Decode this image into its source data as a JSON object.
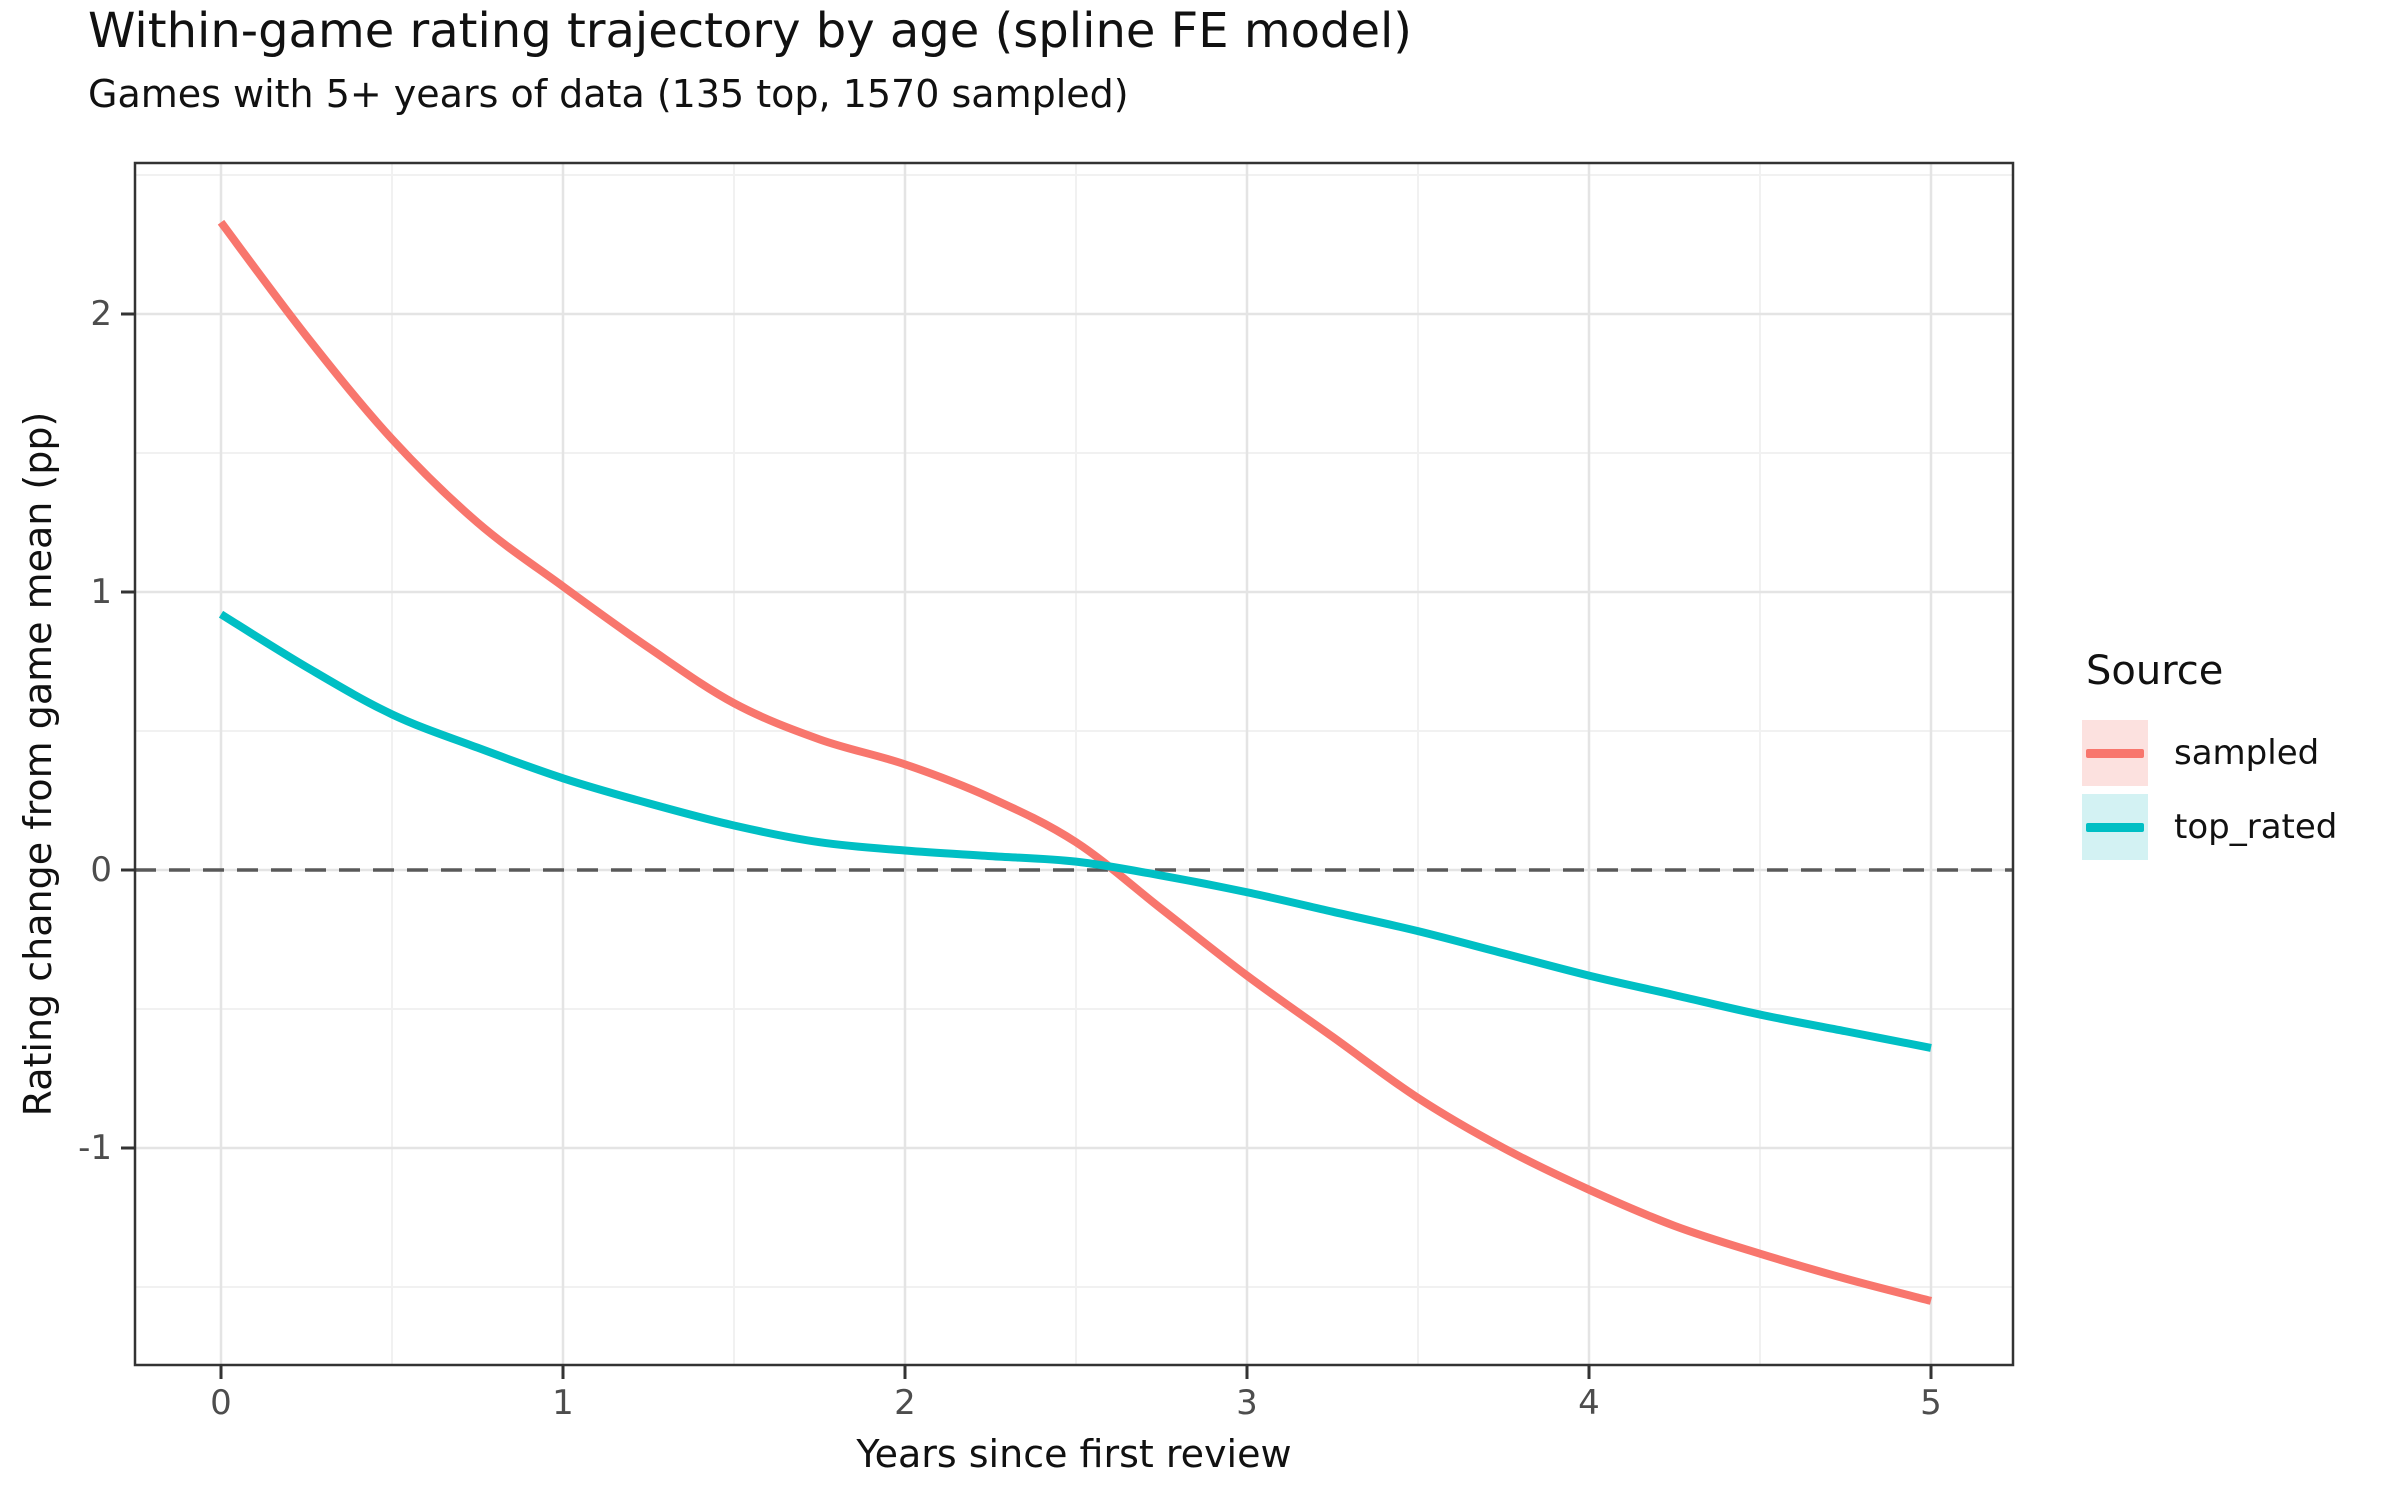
{
  "header": {
    "title": "Within-game rating trajectory by age (spline FE model)",
    "subtitle": "Games with 5+ years of data (135 top, 1570 sampled)"
  },
  "chart_data": {
    "type": "line",
    "title": "Within-game rating trajectory by age (spline FE model)",
    "subtitle": "Games with 5+ years of data (135 top, 1570 sampled)",
    "xlabel": "Years since first review",
    "ylabel": "Rating change from game mean (pp)",
    "xlim": [
      -0.25,
      5.25
    ],
    "ylim": [
      -1.78,
      2.55
    ],
    "grid": "major and minor light-gray gridlines on white panel, dark panel border",
    "x_ticks": [
      0,
      1,
      2,
      3,
      4,
      5
    ],
    "x_tick_labels": [
      "0",
      "1",
      "2",
      "3",
      "4",
      "5"
    ],
    "minor_x_ticks": [
      0.5,
      1.5,
      2.5,
      3.5,
      4.5
    ],
    "y_ticks": [
      2,
      1,
      0,
      -1
    ],
    "y_tick_labels": [
      "2",
      "1",
      "0",
      "-1"
    ],
    "minor_y_ticks": [
      2.5,
      1.5,
      0.5,
      -0.5,
      -1.5
    ],
    "reference_line": {
      "y": 0,
      "style": "dashed",
      "color": "#595959"
    },
    "x": [
      0,
      0.25,
      0.5,
      0.75,
      1,
      1.25,
      1.5,
      1.75,
      2,
      2.25,
      2.5,
      2.75,
      3,
      3.25,
      3.5,
      3.75,
      4,
      4.25,
      4.5,
      4.75,
      5
    ],
    "series": [
      {
        "name": "sampled",
        "color": "#F8766D",
        "key_fill": "#FCE1DF",
        "values": [
          2.33,
          1.92,
          1.55,
          1.25,
          1.02,
          0.8,
          0.6,
          0.47,
          0.38,
          0.26,
          0.1,
          -0.14,
          -0.38,
          -0.6,
          -0.82,
          -1.0,
          -1.15,
          -1.28,
          -1.38,
          -1.47,
          -1.55
        ]
      },
      {
        "name": "top_rated",
        "color": "#00BFC4",
        "key_fill": "#D3F2F3",
        "values": [
          0.92,
          0.73,
          0.56,
          0.44,
          0.33,
          0.24,
          0.16,
          0.1,
          0.07,
          0.05,
          0.03,
          -0.02,
          -0.08,
          -0.15,
          -0.22,
          -0.3,
          -0.38,
          -0.45,
          -0.52,
          -0.58,
          -0.64
        ]
      }
    ],
    "legend": {
      "title": "Source",
      "position": "right",
      "entries": [
        {
          "label": "sampled",
          "color": "#F8766D"
        },
        {
          "label": "top_rated",
          "color": "#00BFC4"
        }
      ]
    },
    "colors": {
      "panel_border": "#333333",
      "major_grid": "#E4E4E4",
      "minor_grid": "#F1F1F1",
      "tick_mark": "#333333",
      "tick_text": "#4d4d4d",
      "zero_line": "#595959"
    }
  }
}
